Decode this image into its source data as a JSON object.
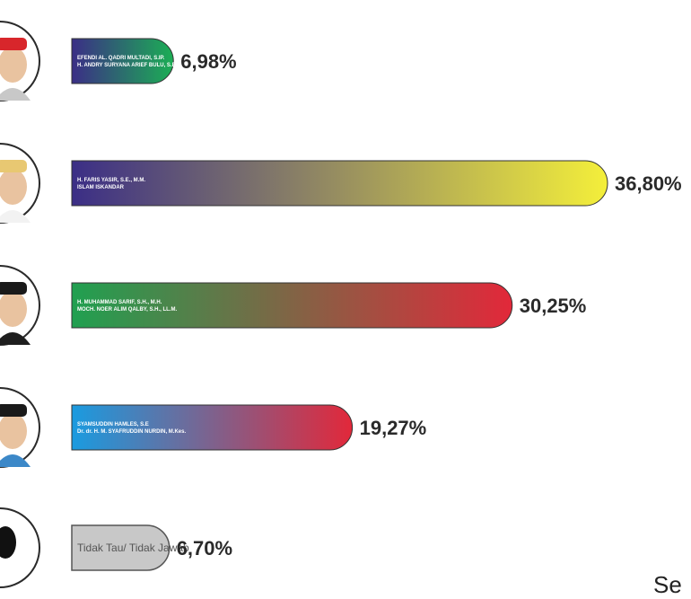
{
  "chart_data": {
    "type": "bar",
    "orientation": "horizontal",
    "categories": [
      "EFENDI AL. QADRI MULTADI, S.IP. / H. ANDRY SURYANA ARIEF BULU, S.E., M.M.",
      "H. FARIS YASIR, S.E., M.M. / ISLAM ISKANDAR",
      "H. MUHAMMAD SARIF, S.H., M.H. / MOCH. NOER ALIM QALBY, S.H., LL.M.",
      "SYAMSUDDIN HAMLES, S.E / Dr. dr. H. M. SYAFRUDDIN NURDIN, M.Kes.",
      "Tidak Tau/ Tidak Jawab"
    ],
    "bar_labels": [
      [
        "EFENDI AL. QADRI MULTADI, S.IP.",
        "H. ANDRY SURYANA ARIEF BULU, S.E., M.M."
      ],
      [
        "H. FARIS YASIR, S.E., M.M.",
        "ISLAM ISKANDAR"
      ],
      [
        "H. MUHAMMAD SARIF, S.H., M.H.",
        "MOCH. NOER ALIM QALBY, S.H., LL.M."
      ],
      [
        "SYAMSUDDIN HAMLES, S.E",
        "Dr. dr. H. M. SYAFRUDDIN NURDIN, M.Kes."
      ],
      [
        "Tidak Tau/ Tidak Jawab"
      ]
    ],
    "values": [
      6.98,
      36.8,
      30.25,
      19.27,
      6.7
    ],
    "value_labels": [
      "6,98%",
      "36,80%",
      "30,25%",
      "19,27%",
      "6,70%"
    ],
    "gradients": [
      [
        "#3b2e86",
        "#1cae55"
      ],
      [
        "#3b2e86",
        "#f4ef3a"
      ],
      [
        "#20a050",
        "#e2283a"
      ],
      [
        "#1a9be0",
        "#e2283a"
      ],
      [
        "#c8c8c8",
        "#c8c8c8"
      ]
    ],
    "xlim": [
      0,
      40
    ],
    "grid": false,
    "legend": "none"
  },
  "trailing_text": "Se"
}
